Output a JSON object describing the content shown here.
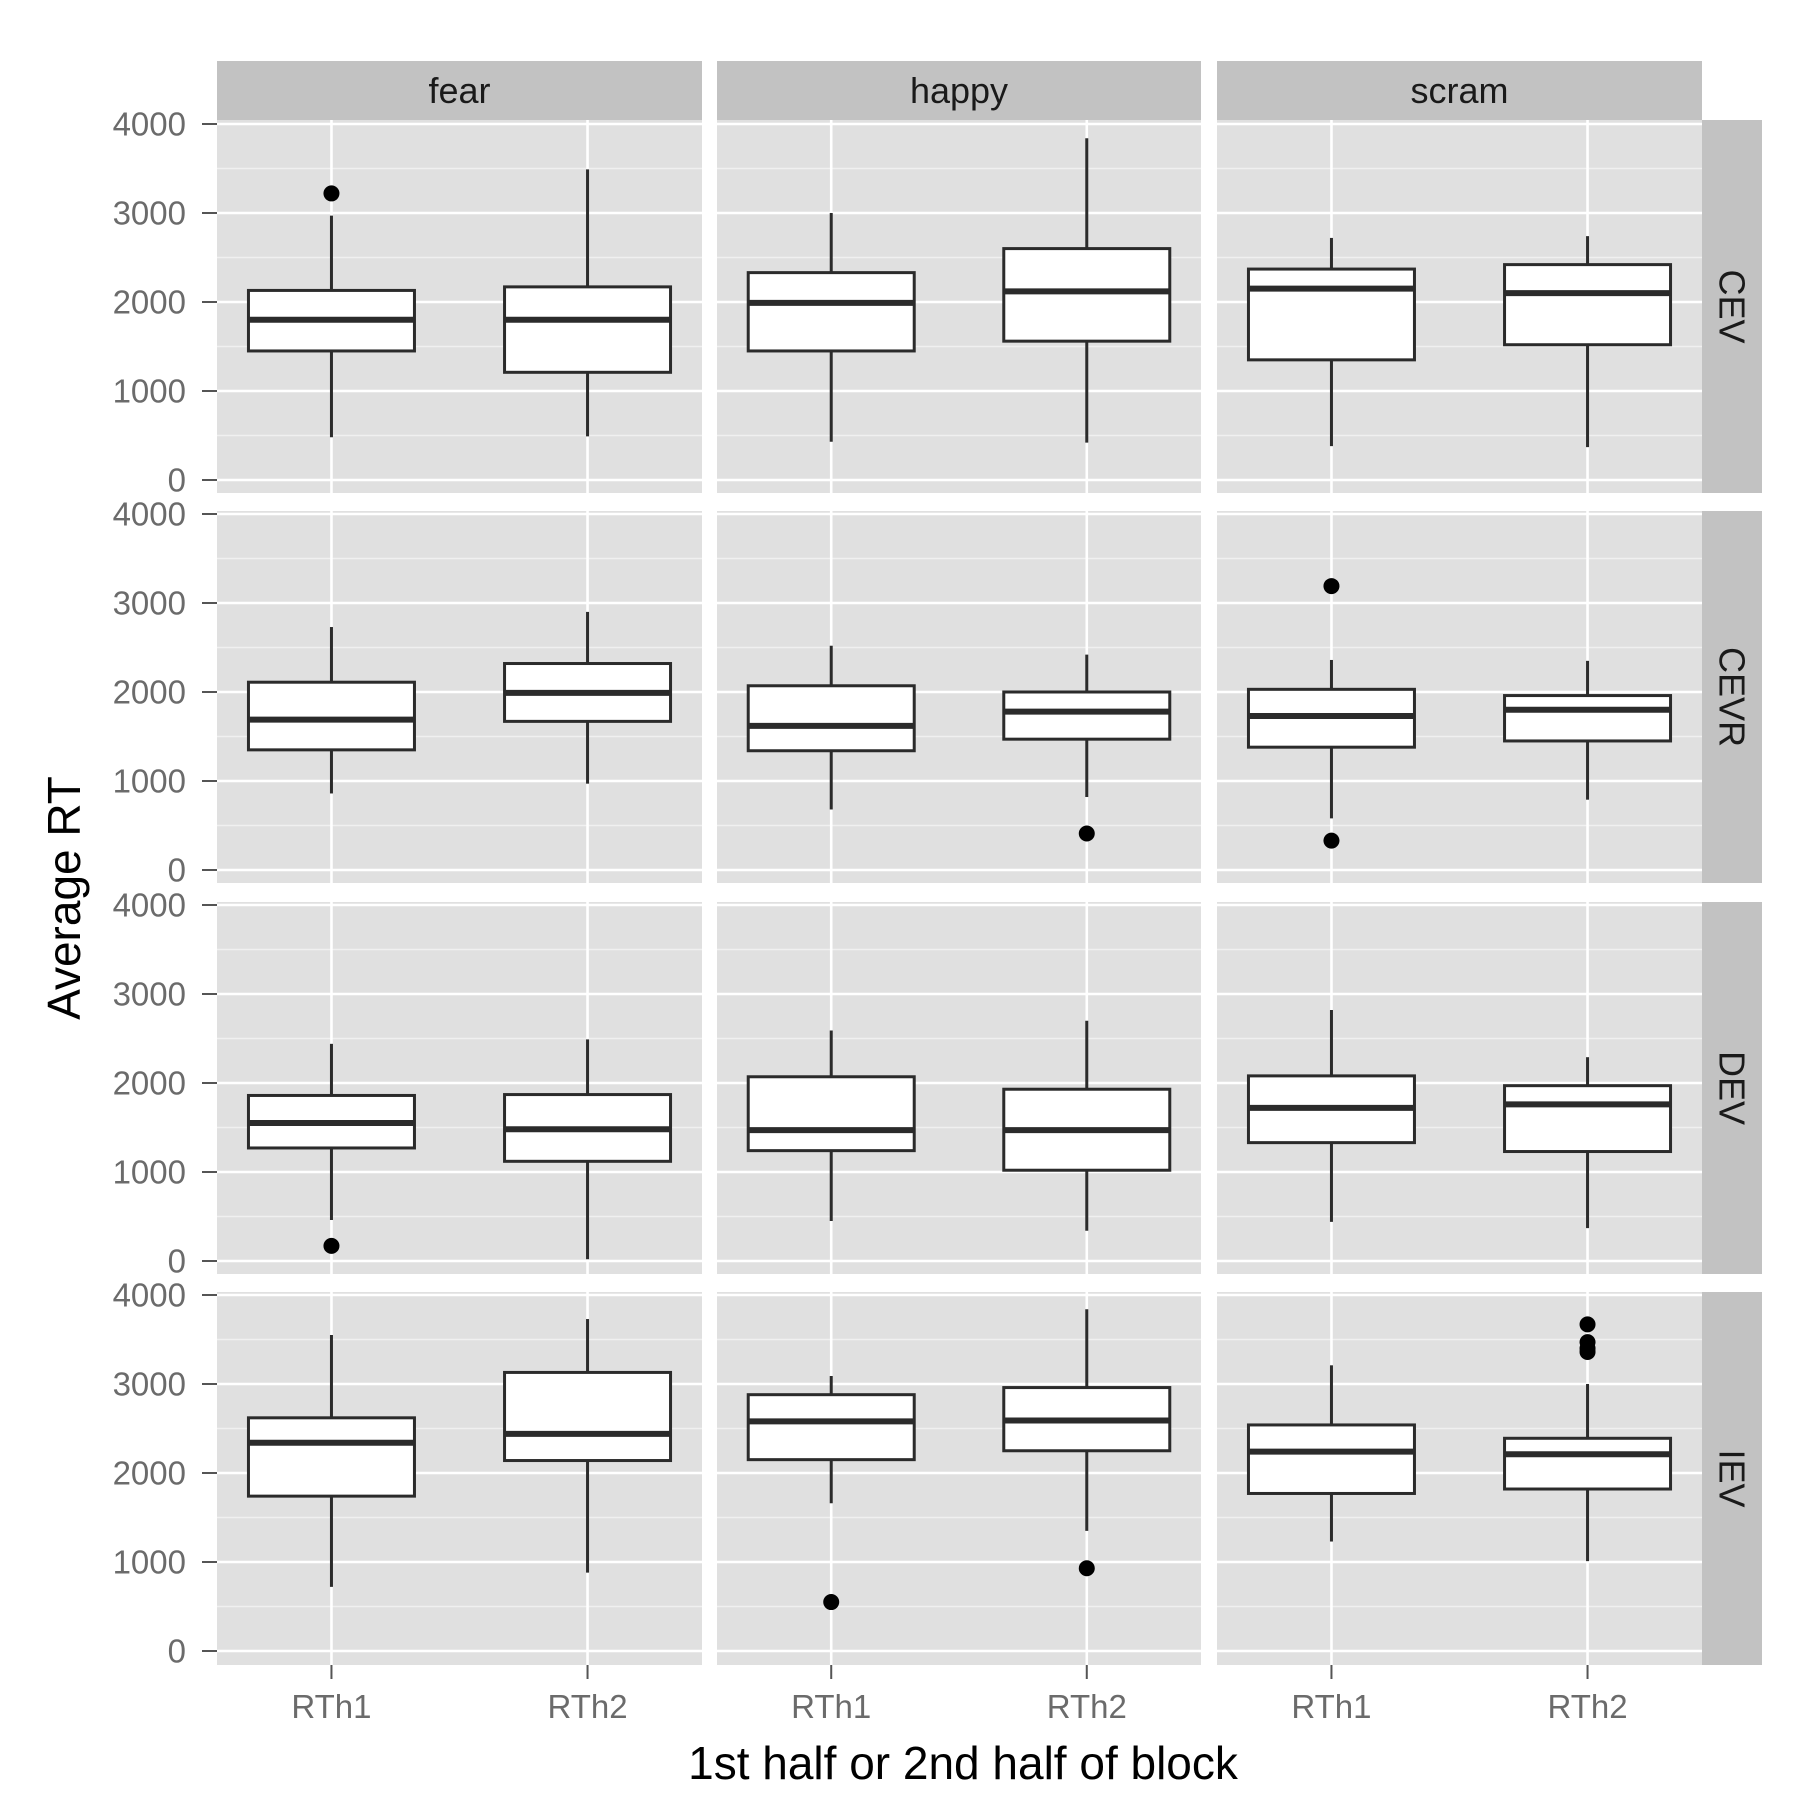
{
  "chart_data": {
    "type": "boxplot",
    "title": "",
    "xlabel": "1st half or 2nd half of block",
    "ylabel": "Average RT",
    "categories": [
      "RTh1",
      "RTh2"
    ],
    "columns": [
      "fear",
      "happy",
      "scram"
    ],
    "rows": [
      "CEV",
      "CEVR",
      "DEV",
      "IEV"
    ],
    "ylim": [
      0,
      4000
    ],
    "yticks": [
      "0",
      "1000",
      "2000",
      "3000",
      "4000"
    ],
    "yticks_values": [
      0,
      1000,
      2000,
      3000,
      4000
    ],
    "grid": true,
    "colors": {
      "panel": "#e0e0e0",
      "strip": "#c2c2c2",
      "grid_major": "#ffffff",
      "grid_minor": "#f0f0f0",
      "box_fill": "#ffffff",
      "box_line": "#2b2b2b",
      "outlier": "#000000"
    },
    "panels": [
      {
        "row": "CEV",
        "col": "fear",
        "boxes": [
          {
            "category": "RTh1",
            "whisker_low": 480,
            "q1": 1450,
            "median": 1800,
            "q3": 2130,
            "whisker_high": 2970,
            "outliers": [
              3220
            ]
          },
          {
            "category": "RTh2",
            "whisker_low": 490,
            "q1": 1210,
            "median": 1800,
            "q3": 2170,
            "whisker_high": 3490,
            "outliers": []
          }
        ]
      },
      {
        "row": "CEV",
        "col": "happy",
        "boxes": [
          {
            "category": "RTh1",
            "whisker_low": 430,
            "q1": 1450,
            "median": 1990,
            "q3": 2330,
            "whisker_high": 3000,
            "outliers": []
          },
          {
            "category": "RTh2",
            "whisker_low": 420,
            "q1": 1560,
            "median": 2120,
            "q3": 2600,
            "whisker_high": 3840,
            "outliers": []
          }
        ]
      },
      {
        "row": "CEV",
        "col": "scram",
        "boxes": [
          {
            "category": "RTh1",
            "whisker_low": 380,
            "q1": 1350,
            "median": 2150,
            "q3": 2370,
            "whisker_high": 2720,
            "outliers": []
          },
          {
            "category": "RTh2",
            "whisker_low": 370,
            "q1": 1520,
            "median": 2100,
            "q3": 2420,
            "whisker_high": 2740,
            "outliers": []
          }
        ]
      },
      {
        "row": "CEVR",
        "col": "fear",
        "boxes": [
          {
            "category": "RTh1",
            "whisker_low": 860,
            "q1": 1350,
            "median": 1690,
            "q3": 2110,
            "whisker_high": 2730,
            "outliers": []
          },
          {
            "category": "RTh2",
            "whisker_low": 970,
            "q1": 1670,
            "median": 1990,
            "q3": 2320,
            "whisker_high": 2900,
            "outliers": []
          }
        ]
      },
      {
        "row": "CEVR",
        "col": "happy",
        "boxes": [
          {
            "category": "RTh1",
            "whisker_low": 680,
            "q1": 1340,
            "median": 1620,
            "q3": 2070,
            "whisker_high": 2520,
            "outliers": []
          },
          {
            "category": "RTh2",
            "whisker_low": 820,
            "q1": 1470,
            "median": 1780,
            "q3": 2000,
            "whisker_high": 2420,
            "outliers": [
              410
            ]
          }
        ]
      },
      {
        "row": "CEVR",
        "col": "scram",
        "boxes": [
          {
            "category": "RTh1",
            "whisker_low": 580,
            "q1": 1380,
            "median": 1730,
            "q3": 2030,
            "whisker_high": 2360,
            "outliers": [
              3190,
              330
            ]
          },
          {
            "category": "RTh2",
            "whisker_low": 790,
            "q1": 1450,
            "median": 1800,
            "q3": 1960,
            "whisker_high": 2350,
            "outliers": []
          }
        ]
      },
      {
        "row": "DEV",
        "col": "fear",
        "boxes": [
          {
            "category": "RTh1",
            "whisker_low": 460,
            "q1": 1270,
            "median": 1550,
            "q3": 1860,
            "whisker_high": 2440,
            "outliers": [
              170
            ]
          },
          {
            "category": "RTh2",
            "whisker_low": 20,
            "q1": 1120,
            "median": 1480,
            "q3": 1870,
            "whisker_high": 2490,
            "outliers": []
          }
        ]
      },
      {
        "row": "DEV",
        "col": "happy",
        "boxes": [
          {
            "category": "RTh1",
            "whisker_low": 450,
            "q1": 1240,
            "median": 1470,
            "q3": 2070,
            "whisker_high": 2590,
            "outliers": []
          },
          {
            "category": "RTh2",
            "whisker_low": 340,
            "q1": 1020,
            "median": 1470,
            "q3": 1930,
            "whisker_high": 2700,
            "outliers": []
          }
        ]
      },
      {
        "row": "DEV",
        "col": "scram",
        "boxes": [
          {
            "category": "RTh1",
            "whisker_low": 440,
            "q1": 1330,
            "median": 1720,
            "q3": 2080,
            "whisker_high": 2820,
            "outliers": []
          },
          {
            "category": "RTh2",
            "whisker_low": 370,
            "q1": 1230,
            "median": 1760,
            "q3": 1970,
            "whisker_high": 2290,
            "outliers": []
          }
        ]
      },
      {
        "row": "IEV",
        "col": "fear",
        "boxes": [
          {
            "category": "RTh1",
            "whisker_low": 720,
            "q1": 1740,
            "median": 2340,
            "q3": 2620,
            "whisker_high": 3550,
            "outliers": []
          },
          {
            "category": "RTh2",
            "whisker_low": 880,
            "q1": 2140,
            "median": 2440,
            "q3": 3130,
            "whisker_high": 3730,
            "outliers": []
          }
        ]
      },
      {
        "row": "IEV",
        "col": "happy",
        "boxes": [
          {
            "category": "RTh1",
            "whisker_low": 1660,
            "q1": 2150,
            "median": 2580,
            "q3": 2880,
            "whisker_high": 3090,
            "outliers": [
              550
            ]
          },
          {
            "category": "RTh2",
            "whisker_low": 1350,
            "q1": 2250,
            "median": 2590,
            "q3": 2960,
            "whisker_high": 3840,
            "outliers": [
              930
            ]
          }
        ]
      },
      {
        "row": "IEV",
        "col": "scram",
        "boxes": [
          {
            "category": "RTh1",
            "whisker_low": 1230,
            "q1": 1770,
            "median": 2240,
            "q3": 2540,
            "whisker_high": 3210,
            "outliers": []
          },
          {
            "category": "RTh2",
            "whisker_low": 1010,
            "q1": 1820,
            "median": 2210,
            "q3": 2390,
            "whisker_high": 3000,
            "outliers": [
              3670,
              3470,
              3400,
              3360
            ]
          }
        ]
      }
    ]
  }
}
